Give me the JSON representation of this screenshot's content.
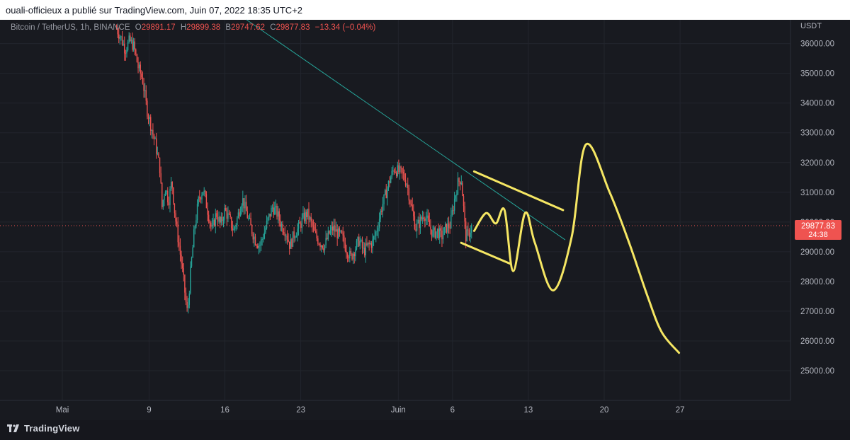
{
  "header": {
    "published_text": "ouali-officieux a publié sur TradingView.com, Juin 07, 2022 18:35 UTC+2"
  },
  "legend": {
    "symbol": "Bitcoin / TetherUS, 1h, BINANCE",
    "open_label": "O",
    "open": "29891.17",
    "high_label": "H",
    "high": "29899.38",
    "low_label": "B",
    "low": "29747.62",
    "close_label": "C",
    "close": "29877.83",
    "change": "−13.34 (−0.04%)"
  },
  "price_tag": {
    "price": "29877.83",
    "countdown": "24:38"
  },
  "footer": {
    "brand": "TradingView"
  },
  "colors": {
    "up": "#26a69a",
    "down": "#ef5350",
    "trendline": "#26a69a",
    "drawing": "#f5e663",
    "background": "#181a20"
  },
  "chart_data": {
    "type": "candlestick",
    "axis_unit": "USDT",
    "ylim": [
      24000,
      36800
    ],
    "y_ticks": [
      25000,
      26000,
      27000,
      28000,
      29000,
      30000,
      31000,
      32000,
      33000,
      34000,
      35000,
      36000
    ],
    "y_tick_labels": [
      "25000.00",
      "26000.00",
      "27000.00",
      "28000.00",
      "29000.00",
      "30000.00",
      "31000.00",
      "32000.00",
      "33000.00",
      "34000.00",
      "35000.00",
      "36000.00"
    ],
    "x_ticks": [
      {
        "label": "Mai",
        "day": 0
      },
      {
        "label": "9",
        "day": 8
      },
      {
        "label": "16",
        "day": 15
      },
      {
        "label": "23",
        "day": 22
      },
      {
        "label": "Juin",
        "day": 31
      },
      {
        "label": "6",
        "day": 36
      },
      {
        "label": "13",
        "day": 43
      },
      {
        "label": "20",
        "day": 50
      },
      {
        "label": "27",
        "day": 57
      }
    ],
    "last_price": 29877.83,
    "series_points": [
      [
        5.0,
        36500
      ],
      [
        5.4,
        36200
      ],
      [
        5.8,
        35800
      ],
      [
        6.2,
        36100
      ],
      [
        6.6,
        35900
      ],
      [
        7.0,
        35200
      ],
      [
        7.4,
        34800
      ],
      [
        7.8,
        33800
      ],
      [
        8.2,
        33200
      ],
      [
        8.6,
        32600
      ],
      [
        9.0,
        31800
      ],
      [
        9.2,
        30500
      ],
      [
        9.5,
        31200
      ],
      [
        9.8,
        30700
      ],
      [
        10.1,
        31400
      ],
      [
        10.4,
        30200
      ],
      [
        10.7,
        29400
      ],
      [
        11.0,
        28600
      ],
      [
        11.2,
        28000
      ],
      [
        11.4,
        27300
      ],
      [
        11.55,
        26900
      ],
      [
        11.8,
        28200
      ],
      [
        12.2,
        29800
      ],
      [
        12.6,
        30800
      ],
      [
        13.0,
        31100
      ],
      [
        13.4,
        30400
      ],
      [
        13.8,
        29700
      ],
      [
        14.2,
        30300
      ],
      [
        14.6,
        29900
      ],
      [
        15.0,
        30400
      ],
      [
        15.4,
        30100
      ],
      [
        15.8,
        29700
      ],
      [
        16.2,
        30200
      ],
      [
        16.6,
        30800
      ],
      [
        17.0,
        30300
      ],
      [
        17.4,
        29800
      ],
      [
        17.8,
        29400
      ],
      [
        18.2,
        29200
      ],
      [
        18.6,
        29600
      ],
      [
        19.0,
        30100
      ],
      [
        19.4,
        30500
      ],
      [
        19.8,
        30300
      ],
      [
        20.2,
        29900
      ],
      [
        20.6,
        29700
      ],
      [
        21.0,
        29200
      ],
      [
        21.4,
        29600
      ],
      [
        21.8,
        29800
      ],
      [
        22.2,
        30100
      ],
      [
        22.6,
        30300
      ],
      [
        23.0,
        29900
      ],
      [
        23.4,
        29500
      ],
      [
        23.8,
        29300
      ],
      [
        24.2,
        29200
      ],
      [
        24.6,
        29600
      ],
      [
        25.0,
        29800
      ],
      [
        25.4,
        29600
      ],
      [
        25.8,
        29500
      ],
      [
        26.2,
        29100
      ],
      [
        26.6,
        28800
      ],
      [
        27.0,
        29100
      ],
      [
        27.4,
        29400
      ],
      [
        27.8,
        29000
      ],
      [
        28.2,
        29200
      ],
      [
        28.6,
        29300
      ],
      [
        29.0,
        29700
      ],
      [
        29.4,
        30400
      ],
      [
        29.8,
        30900
      ],
      [
        30.2,
        31400
      ],
      [
        30.6,
        31800
      ],
      [
        31.0,
        31700
      ],
      [
        31.4,
        31600
      ],
      [
        31.8,
        31300
      ],
      [
        32.2,
        30500
      ],
      [
        32.6,
        29800
      ],
      [
        33.0,
        30000
      ],
      [
        33.4,
        30300
      ],
      [
        33.8,
        29900
      ],
      [
        34.2,
        29600
      ],
      [
        34.6,
        29700
      ],
      [
        35.0,
        29500
      ],
      [
        35.4,
        29800
      ],
      [
        35.8,
        29900
      ],
      [
        36.2,
        30800
      ],
      [
        36.5,
        31300
      ],
      [
        36.8,
        31500
      ],
      [
        37.0,
        30600
      ],
      [
        37.2,
        29500
      ],
      [
        37.5,
        29600
      ],
      [
        37.8,
        29877
      ]
    ],
    "trendline": [
      [
        17.0,
        36800
      ],
      [
        46.4,
        29400
      ]
    ],
    "drawings": [
      [
        [
          38.0,
          31700
        ],
        [
          46.2,
          30400
        ]
      ],
      [
        [
          36.8,
          29300
        ],
        [
          41.3,
          28600
        ]
      ],
      [
        [
          38.0,
          29700
        ],
        [
          39.1,
          30300
        ],
        [
          40.0,
          29950
        ],
        [
          40.8,
          30400
        ],
        [
          41.6,
          28350
        ],
        [
          42.7,
          30300
        ],
        [
          43.6,
          29300
        ],
        [
          45.3,
          27700
        ],
        [
          47.0,
          29500
        ],
        [
          48.3,
          32600
        ],
        [
          50.5,
          31000
        ],
        [
          52.3,
          29300
        ],
        [
          54.0,
          27500
        ],
        [
          55.3,
          26300
        ],
        [
          56.9,
          25600
        ]
      ]
    ]
  }
}
